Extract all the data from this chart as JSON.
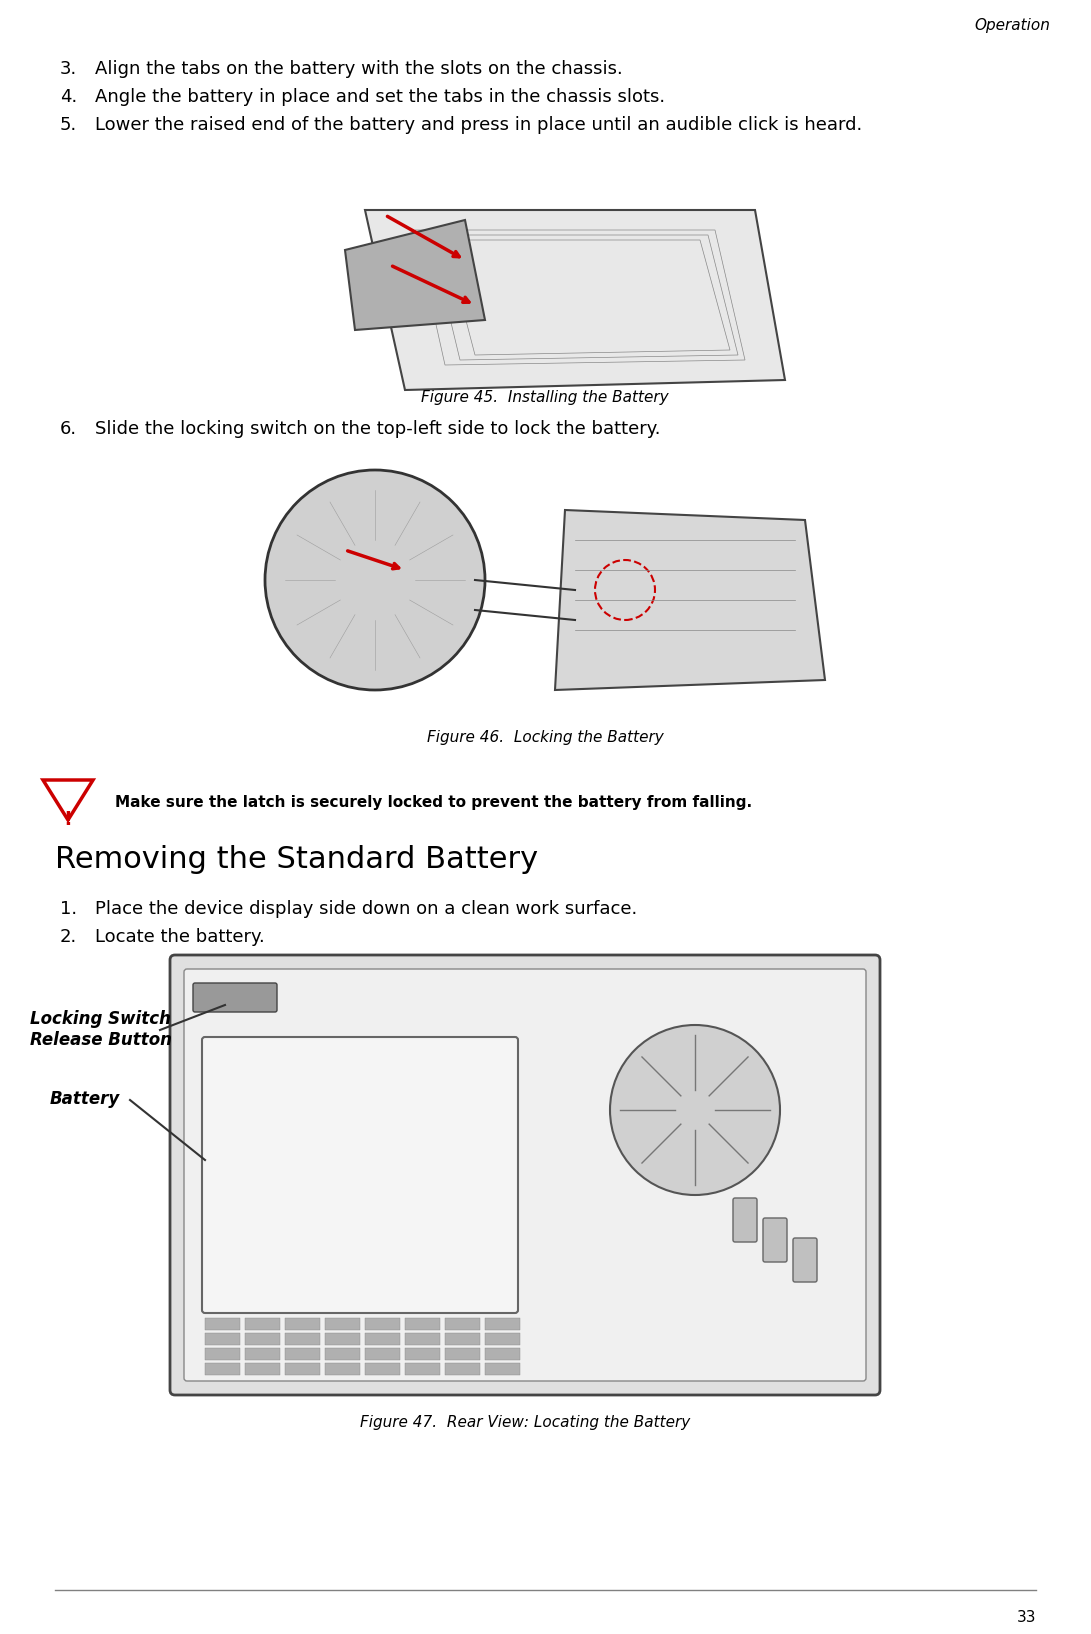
{
  "bg_color": "#ffffff",
  "text_color": "#000000",
  "header_text": "Operation",
  "footer_number": "33",
  "items": [
    {
      "num": "3.",
      "text": "Align the tabs on the battery with the slots on the chassis."
    },
    {
      "num": "4.",
      "text": "Angle the battery in place and set the tabs in the chassis slots."
    },
    {
      "num": "5.",
      "text": "Lower the raised end of the battery and press in place until an audible click is heard."
    }
  ],
  "fig45_caption": "Figure 45.  Installing the Battery",
  "item6": {
    "num": "6.",
    "text": "Slide the locking switch on the top-left side to lock the battery."
  },
  "fig46_caption": "Figure 46.  Locking the Battery",
  "warning_text": "Make sure the latch is securely locked to prevent the battery from falling.",
  "section_title": "Removing the Standard Battery",
  "items2": [
    {
      "num": "1.",
      "text": "Place the device display side down on a clean work surface."
    },
    {
      "num": "2.",
      "text": "Locate the battery."
    }
  ],
  "label_locking": "Locking Switch\nRelease Button",
  "label_battery": "Battery",
  "fig47_caption": "Figure 47.  Rear View: Locating the Battery",
  "gray_line_color": "#808080",
  "red_color": "#cc0000",
  "light_gray": "#cccccc",
  "medium_gray": "#999999",
  "dark_gray": "#555555"
}
